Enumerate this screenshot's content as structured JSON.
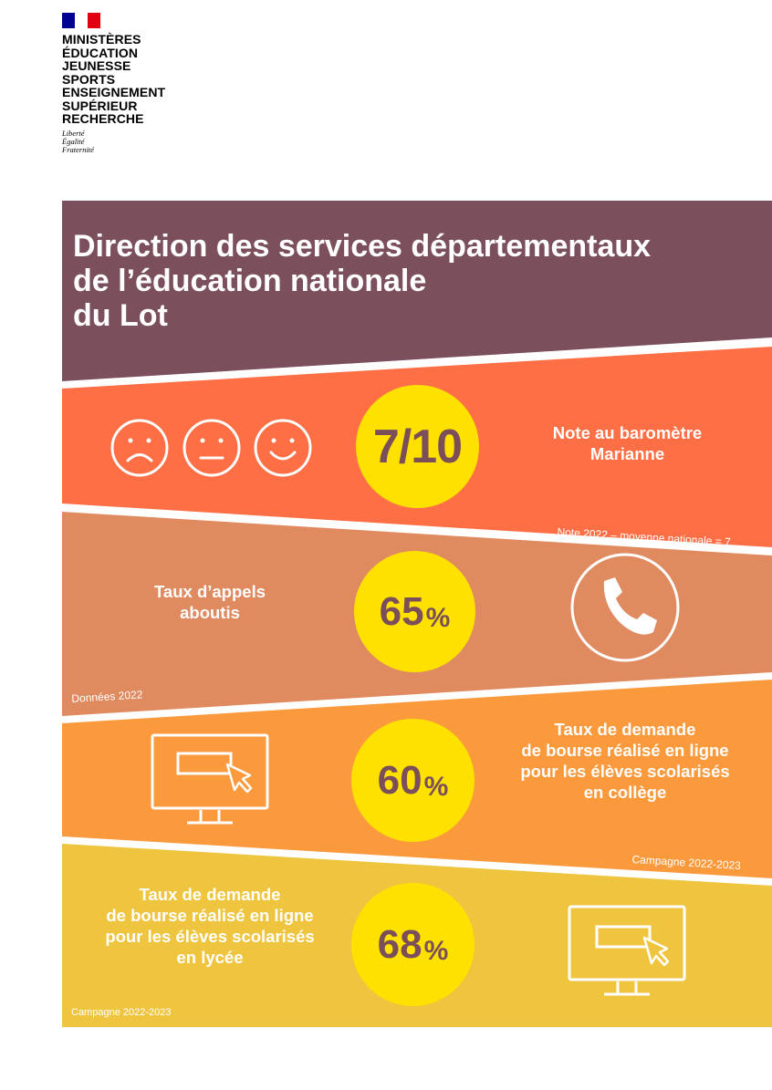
{
  "logo": {
    "lines": [
      "MINISTÈRES",
      "ÉDUCATION",
      "JEUNESSE",
      "SPORTS",
      "ENSEIGNEMENT",
      "SUPÉRIEUR",
      "RECHERCHE"
    ],
    "motto": [
      "Liberté",
      "Égalité",
      "Fraternité"
    ]
  },
  "header": {
    "title_lines": [
      "Direction des services départementaux",
      "de l’éducation nationale",
      "du Lot"
    ]
  },
  "colors": {
    "header": "#7b4f5c",
    "band1": "#ff6f45",
    "band2": "#e08a5f",
    "band3": "#fb9a3d",
    "band4": "#efc53f",
    "circle": "#ffe100",
    "number": "#7a4f5a"
  },
  "indicators": [
    {
      "value": "7/10",
      "label": "Note au baromètre Marianne",
      "note": "Note 2022 – moyenne nationale = 7",
      "icons": [
        "sad-face-icon",
        "neutral-face-icon",
        "happy-face-icon"
      ]
    },
    {
      "value": "65",
      "unit": "%",
      "label": "Taux d’appels aboutis",
      "note": "Données 2022",
      "icons": [
        "phone-icon"
      ]
    },
    {
      "value": "60",
      "unit": "%",
      "label_lines": [
        "Taux de demande",
        "de bourse réalisé en ligne",
        "pour les élèves scolarisés",
        "en collège"
      ],
      "note": "Campagne 2022-2023",
      "icons": [
        "computer-screen-icon"
      ]
    },
    {
      "value": "68",
      "unit": "%",
      "label_lines": [
        "Taux de demande",
        "de bourse réalisé en ligne",
        "pour les élèves scolarisés",
        "en lycée"
      ],
      "note": "Campagne 2022-2023",
      "icons": [
        "computer-screen-icon"
      ]
    }
  ]
}
